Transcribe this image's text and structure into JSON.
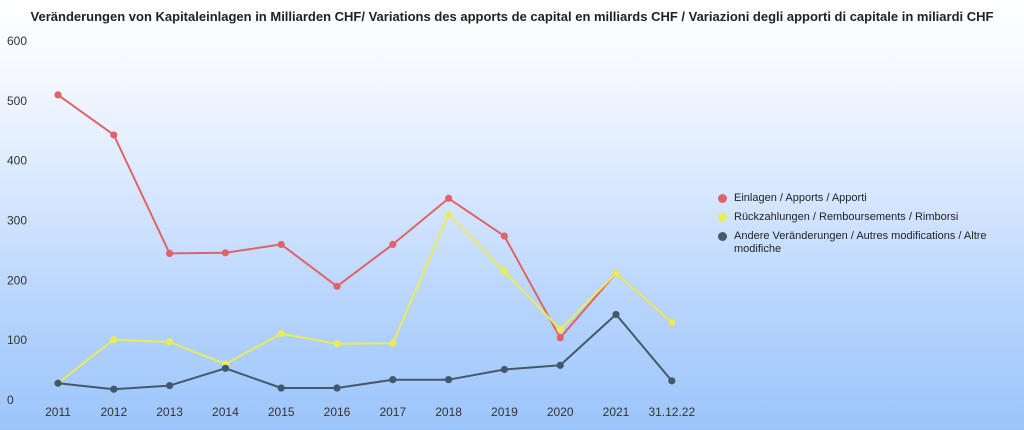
{
  "chart_data": {
    "type": "line",
    "title": "Veränderungen von Kapitaleinlagen in Milliarden CHF/ Variations des apports de capital en milliards CHF / Variazioni degli apporti di capitale in miliardi CHF",
    "categories": [
      "2011",
      "2012",
      "2013",
      "2014",
      "2015",
      "2016",
      "2017",
      "2018",
      "2019",
      "2020",
      "2021",
      "31.12.22"
    ],
    "ylim": [
      0,
      600
    ],
    "yticks": [
      "0",
      "100",
      "200",
      "300",
      "400",
      "500",
      "600"
    ],
    "grid": false,
    "legend_position": "right",
    "series": [
      {
        "name": "Einlagen / Apports / Apporti",
        "color": "#e0636a",
        "values": [
          510,
          443,
          245,
          246,
          260,
          190,
          260,
          337,
          274,
          104,
          212,
          130
        ]
      },
      {
        "name": "Rückzahlungen / Remboursements / Rimborsi",
        "color": "#e8ec5a",
        "values": [
          28,
          101,
          97,
          60,
          111,
          94,
          95,
          310,
          215,
          118,
          212,
          130
        ]
      },
      {
        "name": "Andere Veränderungen / Autres modifications / Altre modifiche",
        "color": "#44586c",
        "values": [
          28,
          18,
          24,
          53,
          20,
          20,
          34,
          34,
          51,
          58,
          143,
          32
        ]
      }
    ]
  }
}
